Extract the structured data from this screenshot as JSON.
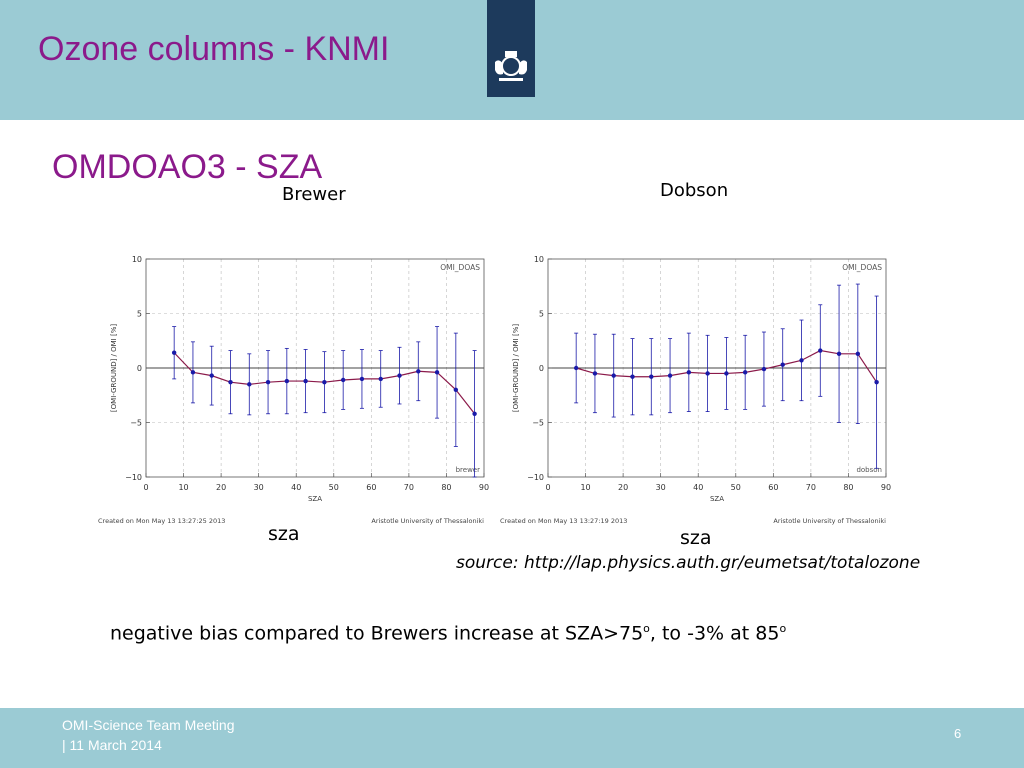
{
  "header": {
    "title": "Ozone columns - KNMI",
    "logo": "coat-of-arms-logo"
  },
  "subtitle": "OMDOAO3 - SZA",
  "labels": {
    "brewer": "Brewer",
    "dobson": "Dobson",
    "sza_left": "sza",
    "sza_right": "sza"
  },
  "source": "source: http://lap.physics.auth.gr/eumetsat/totalozone",
  "conclusion": {
    "text1": "negative bias compared to Brewers increase at SZA>75",
    "sup1": "o",
    "text2": ", to -3% at 85",
    "sup2": "o"
  },
  "footer": {
    "line1": "OMI-Science Team Meeting",
    "line2": "| 11 March 2014",
    "page": "6"
  },
  "colors": {
    "header_bg": "#9bcbd4",
    "title": "#8b1a8b",
    "logo_bg": "#1d3a5c",
    "series": "#1a1aa8",
    "line": "#8b1a4a"
  },
  "chart_data": [
    {
      "type": "line",
      "inset_label": "OMI_DOAS",
      "corner_label": "brewer",
      "xlabel": "SZA",
      "ylabel": "[OMI-GROUND] / OMI  [%]",
      "xlim": [
        0,
        90
      ],
      "ylim": [
        -10,
        10
      ],
      "xticks": [
        0,
        10,
        20,
        30,
        40,
        50,
        60,
        70,
        80,
        90
      ],
      "yticks": [
        -10,
        -5,
        0,
        5,
        10
      ],
      "grid": true,
      "x": [
        7.5,
        12.5,
        17.5,
        22.5,
        27.5,
        32.5,
        37.5,
        42.5,
        47.5,
        52.5,
        57.5,
        62.5,
        67.5,
        72.5,
        77.5,
        82.5,
        87.5
      ],
      "y": [
        1.4,
        -0.4,
        -0.7,
        -1.3,
        -1.5,
        -1.3,
        -1.2,
        -1.2,
        -1.3,
        -1.1,
        -1.0,
        -1.0,
        -0.7,
        -0.3,
        -0.4,
        -2.0,
        -4.2
      ],
      "err": [
        2.4,
        2.8,
        2.7,
        2.9,
        2.8,
        2.9,
        3.0,
        2.9,
        2.8,
        2.7,
        2.7,
        2.6,
        2.6,
        2.7,
        4.2,
        5.2,
        5.8
      ],
      "footer_left": "Created on Mon May 13 13:27:25 2013",
      "footer_right": "Aristotle University of Thessaloniki"
    },
    {
      "type": "line",
      "inset_label": "OMI_DOAS",
      "corner_label": "dobson",
      "xlabel": "SZA",
      "ylabel": "[OMI-GROUND] / OMI  [%]",
      "xlim": [
        0,
        90
      ],
      "ylim": [
        -10,
        10
      ],
      "xticks": [
        0,
        10,
        20,
        30,
        40,
        50,
        60,
        70,
        80,
        90
      ],
      "yticks": [
        -10,
        -5,
        0,
        5,
        10
      ],
      "grid": true,
      "x": [
        7.5,
        12.5,
        17.5,
        22.5,
        27.5,
        32.5,
        37.5,
        42.5,
        47.5,
        52.5,
        57.5,
        62.5,
        67.5,
        72.5,
        77.5,
        82.5,
        87.5
      ],
      "y": [
        0.0,
        -0.5,
        -0.7,
        -0.8,
        -0.8,
        -0.7,
        -0.4,
        -0.5,
        -0.5,
        -0.4,
        -0.1,
        0.3,
        0.7,
        1.6,
        1.3,
        1.3,
        -1.3
      ],
      "err": [
        3.2,
        3.6,
        3.8,
        3.5,
        3.5,
        3.4,
        3.6,
        3.5,
        3.3,
        3.4,
        3.4,
        3.3,
        3.7,
        4.2,
        6.3,
        6.4,
        7.9
      ],
      "footer_left": "Created on Mon May 13 13:27:19 2013",
      "footer_right": "Aristotle University of Thessaloniki"
    }
  ]
}
